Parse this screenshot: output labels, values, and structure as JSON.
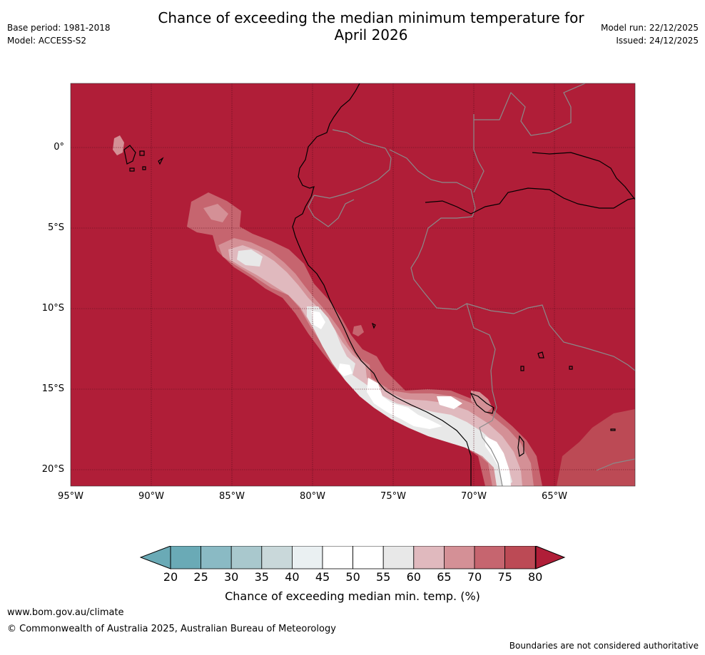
{
  "header": {
    "title_line1": "Chance of exceeding the median minimum temperature for",
    "title_line2": "April 2026",
    "base_period": "Base period: 1981-2018",
    "model": "Model: ACCESS-S2",
    "model_run": "Model run: 22/12/2025",
    "issued": "Issued: 24/12/2025"
  },
  "axes": {
    "lat_ticks": [
      "0°",
      "5°S",
      "10°S",
      "15°S",
      "20°S"
    ],
    "lon_ticks": [
      "95°W",
      "90°W",
      "85°W",
      "80°W",
      "75°W",
      "70°W",
      "65°W"
    ]
  },
  "colorbar": {
    "label": "Chance of exceeding median min. temp. (%)",
    "ticks": [
      "20",
      "25",
      "30",
      "35",
      "40",
      "45",
      "50",
      "55",
      "60",
      "65",
      "70",
      "75",
      "80"
    ],
    "colors": [
      "#6aaab6",
      "#8abac4",
      "#a9c8cd",
      "#c9d8da",
      "#eaf0f2",
      "#ffffff",
      "#ffffff",
      "#e8e8e8",
      "#e0b9be",
      "#d49096",
      "#c6656f",
      "#bc4a55",
      "#b01e38"
    ]
  },
  "map": {
    "dominant_color": "#b01e38",
    "coast_color": "#000000",
    "border_color": "#808080"
  },
  "footer": {
    "website": "www.bom.gov.au/climate",
    "copyright": "© Commonwealth of Australia 2025, Australian Bureau of Meteorology",
    "disclaimer": "Boundaries are not considered authoritative"
  }
}
